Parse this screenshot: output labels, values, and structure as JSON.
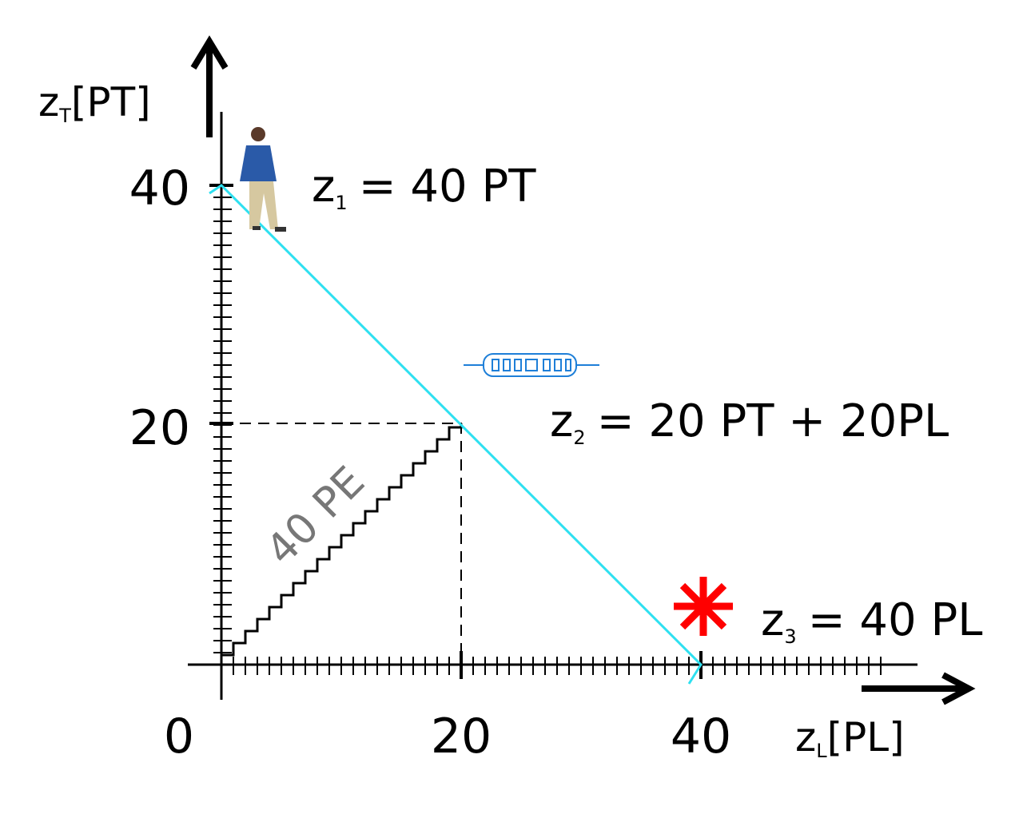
{
  "y_axis": {
    "symbol": "z",
    "subscript": "T",
    "unit": "[PT]"
  },
  "x_axis": {
    "symbol": "z",
    "subscript": "L",
    "unit": "[PL]"
  },
  "y_ticks": [
    "40",
    "20"
  ],
  "x_ticks": [
    "0",
    "20",
    "40"
  ],
  "points": [
    {
      "symbol": "z",
      "subscript": "1",
      "expression": "= 40 PT"
    },
    {
      "symbol": "z",
      "subscript": "2",
      "expression": "= 20 PT + 20PL"
    },
    {
      "symbol": "z",
      "subscript": "3",
      "expression": "= 40 PL"
    }
  ],
  "staircase_label": "40 PE"
}
